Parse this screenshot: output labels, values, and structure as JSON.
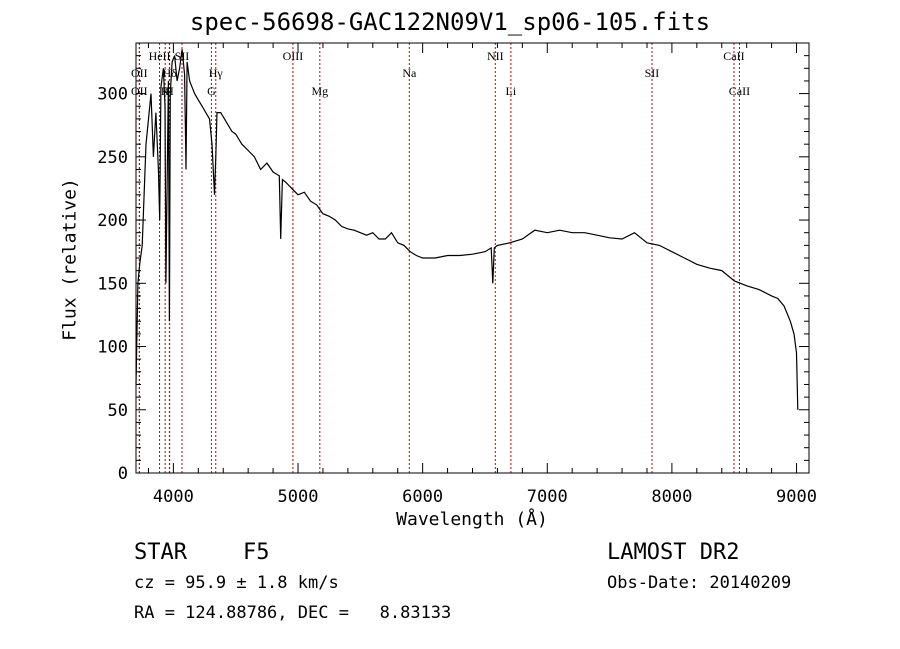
{
  "chart_data": {
    "type": "line",
    "title": "spec-56698-GAC122N09V1_sp06-105.fits",
    "xlabel": "Wavelength (Å)",
    "ylabel": "Flux (relative)",
    "xlim": [
      3700,
      9100
    ],
    "ylim": [
      0,
      340
    ],
    "x_ticks": [
      4000,
      5000,
      6000,
      7000,
      8000,
      9000
    ],
    "y_ticks": [
      0,
      50,
      100,
      150,
      200,
      250,
      300
    ],
    "grid": false,
    "colors": {
      "spectrum": "#000000",
      "lines": "#cc0000",
      "axes": "#000000"
    },
    "series": [
      {
        "x": [
          3700,
          3715,
          3730,
          3750,
          3780,
          3800,
          3820,
          3840,
          3860,
          3880,
          3890,
          3900,
          3920,
          3933,
          3940,
          3960,
          3968,
          3975,
          3990,
          4010,
          4030,
          4050,
          4070,
          4090,
          4101,
          4110,
          4130,
          4150,
          4170,
          4200,
          4230,
          4260,
          4290,
          4310,
          4330,
          4340,
          4350,
          4380,
          4410,
          4440,
          4470,
          4500,
          4550,
          4600,
          4650,
          4700,
          4750,
          4800,
          4850,
          4861,
          4875,
          4900,
          4950,
          5000,
          5050,
          5100,
          5150,
          5200,
          5250,
          5300,
          5350,
          5400,
          5450,
          5500,
          5550,
          5600,
          5650,
          5700,
          5750,
          5800,
          5850,
          5900,
          5950,
          6000,
          6100,
          6200,
          6300,
          6400,
          6500,
          6550,
          6563,
          6575,
          6600,
          6700,
          6800,
          6900,
          7000,
          7100,
          7200,
          7300,
          7400,
          7500,
          7600,
          7700,
          7800,
          7900,
          8000,
          8100,
          8200,
          8300,
          8400,
          8500,
          8600,
          8700,
          8800,
          8850,
          8900,
          8950,
          8980,
          9000,
          9010
        ],
        "y": [
          70,
          150,
          165,
          180,
          260,
          280,
          300,
          250,
          285,
          240,
          200,
          305,
          320,
          290,
          150,
          310,
          120,
          300,
          325,
          330,
          310,
          320,
          335,
          315,
          240,
          325,
          310,
          305,
          300,
          295,
          290,
          285,
          280,
          260,
          220,
          250,
          285,
          285,
          280,
          275,
          270,
          268,
          260,
          255,
          250,
          240,
          245,
          238,
          235,
          185,
          232,
          230,
          225,
          220,
          222,
          215,
          212,
          205,
          203,
          200,
          195,
          193,
          192,
          190,
          188,
          190,
          185,
          185,
          190,
          182,
          180,
          175,
          172,
          170,
          170,
          172,
          172,
          173,
          175,
          178,
          150,
          178,
          180,
          182,
          185,
          192,
          190,
          192,
          190,
          190,
          188,
          186,
          185,
          190,
          182,
          180,
          175,
          170,
          165,
          162,
          160,
          152,
          148,
          145,
          140,
          138,
          132,
          120,
          110,
          95,
          50
        ]
      }
    ],
    "lines": [
      {
        "label": "OII",
        "x": 3727,
        "pos": "top"
      },
      {
        "label": "OII",
        "x": 3727,
        "pos": "mid"
      },
      {
        "label": "HeII",
        "x": 3889,
        "pos": "upper"
      },
      {
        "label": "SII",
        "x": 4069,
        "pos": "upper"
      },
      {
        "label": "Hδ",
        "x": 3970,
        "pos": "top"
      },
      {
        "label": "K",
        "x": 3934,
        "pos": "mid"
      },
      {
        "label": "H",
        "x": 3968,
        "pos": "mid"
      },
      {
        "label": "Hγ",
        "x": 4340,
        "pos": "top"
      },
      {
        "label": "G",
        "x": 4305,
        "pos": "mid"
      },
      {
        "label": "OIII",
        "x": 4959,
        "pos": "upper"
      },
      {
        "label": "Mg",
        "x": 5175,
        "pos": "mid"
      },
      {
        "label": "Na",
        "x": 5893,
        "pos": "top"
      },
      {
        "label": "NII",
        "x": 6583,
        "pos": "upper"
      },
      {
        "label": "Li",
        "x": 6708,
        "pos": "mid"
      },
      {
        "label": "SII",
        "x": 7840,
        "pos": "top"
      },
      {
        "label": "CaII",
        "x": 8498,
        "pos": "upper"
      },
      {
        "label": "CaII",
        "x": 8542,
        "pos": "mid"
      }
    ]
  },
  "info": {
    "object_class": "STAR",
    "subclass": "F5",
    "survey": "LAMOST DR2",
    "cz": "cz = 95.9 ± 1.8 km/s",
    "obs_date": "Obs-Date: 20140209",
    "coords": "RA = 124.88786, DEC =   8.83133"
  }
}
